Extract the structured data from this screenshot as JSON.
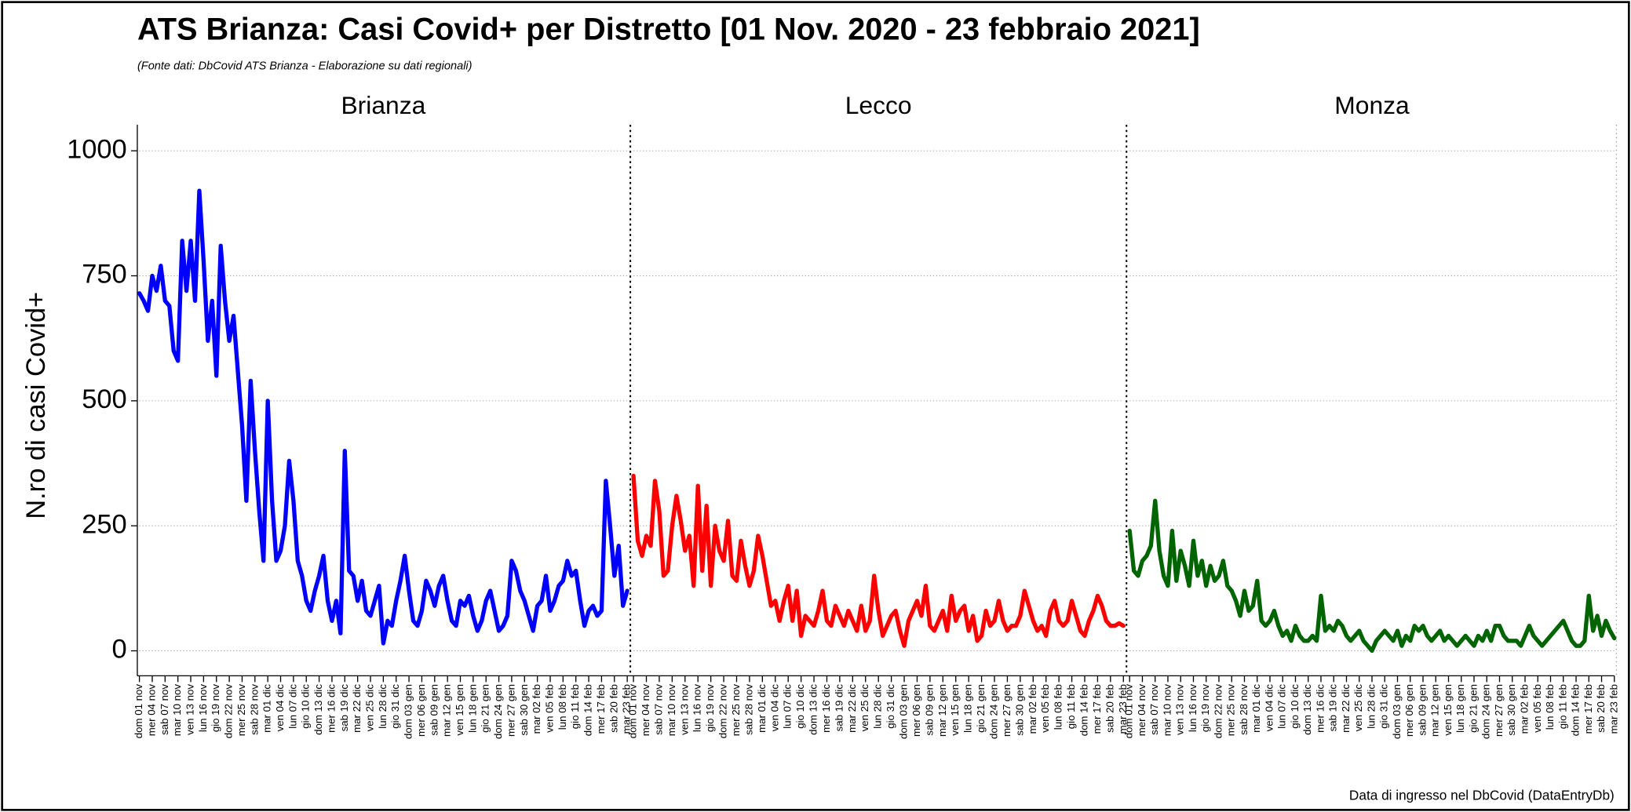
{
  "title": "ATS Brianza: Casi Covid+ per Distretto [01 Nov. 2020 - 23 febbraio 2021]",
  "subtitle": "(Fonte dati: DbCovid ATS Brianza - Elaborazione su dati regionali)",
  "y_label": "N.ro di casi Covid+",
  "caption": "Data di ingresso nel DbCovid (DataEntryDb)",
  "chart_data": [
    {
      "type": "line",
      "title": "Brianza",
      "color": "#0000ff",
      "ylim": [
        -50,
        1050
      ],
      "yticks": [
        0,
        250,
        500,
        750,
        1000
      ],
      "grid": true,
      "categories": [
        "dom 01 nov",
        null,
        null,
        "mer 04 nov",
        null,
        null,
        "sab 07 nov",
        null,
        null,
        "mar 10 nov",
        null,
        null,
        "ven 13 nov",
        null,
        null,
        "lun 16 nov",
        null,
        null,
        "gio 19 nov",
        null,
        null,
        "dom 22 nov",
        null,
        null,
        "mer 25 nov",
        null,
        null,
        "sab 28 nov",
        null,
        null,
        "mar 01 dic",
        null,
        null,
        "ven 04 dic",
        null,
        null,
        "lun 07 dic",
        null,
        null,
        "gio 10 dic",
        null,
        null,
        "dom 13 dic",
        null,
        null,
        "mer 16 dic",
        null,
        null,
        "sab 19 dic",
        null,
        null,
        "mar 22 dic",
        null,
        null,
        "ven 25 dic",
        null,
        null,
        "lun 28 dic",
        null,
        null,
        "gio 31 dic",
        null,
        null,
        "dom 03 gen",
        null,
        null,
        "mer 06 gen",
        null,
        null,
        "sab 09 gen",
        null,
        null,
        "mar 12 gen",
        null,
        null,
        "ven 15 gen",
        null,
        null,
        "lun 18 gen",
        null,
        null,
        "gio 21 gen",
        null,
        null,
        "dom 24 gen",
        null,
        null,
        "mer 27 gen",
        null,
        null,
        "sab 30 gen",
        null,
        null,
        "mar 02 feb",
        null,
        null,
        "ven 05 feb",
        null,
        null,
        "lun 08 feb",
        null,
        null,
        "gio 11 feb",
        null,
        null,
        "dom 14 feb",
        null,
        null,
        "mer 17 feb",
        null,
        null,
        "sab 20 feb",
        null,
        null,
        "mar 23 feb"
      ],
      "values": [
        715,
        700,
        680,
        750,
        720,
        770,
        700,
        690,
        600,
        580,
        820,
        720,
        820,
        700,
        920,
        780,
        620,
        700,
        550,
        810,
        700,
        620,
        670,
        560,
        450,
        300,
        540,
        400,
        280,
        180,
        500,
        300,
        180,
        200,
        250,
        380,
        300,
        180,
        150,
        100,
        80,
        120,
        150,
        190,
        100,
        60,
        100,
        35,
        400,
        160,
        150,
        100,
        140,
        80,
        70,
        100,
        130,
        15,
        60,
        50,
        100,
        140,
        190,
        120,
        60,
        50,
        80,
        140,
        120,
        90,
        130,
        150,
        100,
        60,
        50,
        100,
        90,
        110,
        70,
        40,
        60,
        100,
        120,
        80,
        40,
        50,
        70,
        180,
        160,
        120,
        100,
        70,
        40,
        90,
        100,
        150,
        80,
        100,
        130,
        140,
        180,
        150,
        160,
        100,
        50,
        80,
        90,
        70,
        80,
        340,
        250,
        150,
        210,
        90,
        120
      ]
    },
    {
      "type": "line",
      "title": "Lecco",
      "color": "#ff0000",
      "ylim": [
        -50,
        1050
      ],
      "yticks": [
        0,
        250,
        500,
        750,
        1000
      ],
      "grid": true,
      "categories": [
        "dom 01 nov",
        null,
        null,
        "mer 04 nov",
        null,
        null,
        "sab 07 nov",
        null,
        null,
        "mar 10 nov",
        null,
        null,
        "ven 13 nov",
        null,
        null,
        "lun 16 nov",
        null,
        null,
        "gio 19 nov",
        null,
        null,
        "dom 22 nov",
        null,
        null,
        "mer 25 nov",
        null,
        null,
        "sab 28 nov",
        null,
        null,
        "mar 01 dic",
        null,
        null,
        "ven 04 dic",
        null,
        null,
        "lun 07 dic",
        null,
        null,
        "gio 10 dic",
        null,
        null,
        "dom 13 dic",
        null,
        null,
        "mer 16 dic",
        null,
        null,
        "sab 19 dic",
        null,
        null,
        "mar 22 dic",
        null,
        null,
        "ven 25 dic",
        null,
        null,
        "lun 28 dic",
        null,
        null,
        "gio 31 dic",
        null,
        null,
        "dom 03 gen",
        null,
        null,
        "mer 06 gen",
        null,
        null,
        "sab 09 gen",
        null,
        null,
        "mar 12 gen",
        null,
        null,
        "ven 15 gen",
        null,
        null,
        "lun 18 gen",
        null,
        null,
        "gio 21 gen",
        null,
        null,
        "dom 24 gen",
        null,
        null,
        "mer 27 gen",
        null,
        null,
        "sab 30 gen",
        null,
        null,
        "mar 02 feb",
        null,
        null,
        "ven 05 feb",
        null,
        null,
        "lun 08 feb",
        null,
        null,
        "gio 11 feb",
        null,
        null,
        "dom 14 feb",
        null,
        null,
        "mer 17 feb",
        null,
        null,
        "sab 20 feb",
        null,
        null,
        "mar 23 feb"
      ],
      "values": [
        350,
        220,
        190,
        230,
        210,
        340,
        280,
        150,
        160,
        250,
        310,
        260,
        200,
        230,
        130,
        330,
        160,
        290,
        130,
        250,
        200,
        180,
        260,
        150,
        140,
        220,
        170,
        130,
        160,
        230,
        190,
        140,
        90,
        100,
        60,
        100,
        130,
        60,
        120,
        30,
        70,
        60,
        50,
        80,
        120,
        60,
        50,
        90,
        70,
        50,
        80,
        60,
        40,
        90,
        40,
        60,
        150,
        80,
        30,
        50,
        70,
        80,
        40,
        10,
        60,
        80,
        100,
        70,
        130,
        50,
        40,
        60,
        80,
        40,
        110,
        60,
        80,
        90,
        40,
        70,
        20,
        30,
        80,
        50,
        60,
        100,
        60,
        40,
        50,
        50,
        70,
        120,
        90,
        60,
        40,
        50,
        30,
        80,
        100,
        60,
        50,
        60,
        100,
        70,
        40,
        30,
        60,
        80,
        110,
        90,
        60,
        50,
        50,
        55,
        50
      ]
    },
    {
      "type": "line",
      "title": "Monza",
      "color": "#006400",
      "ylim": [
        -50,
        1050
      ],
      "yticks": [
        0,
        250,
        500,
        750,
        1000
      ],
      "grid": true,
      "categories": [
        "dom 01 nov",
        null,
        null,
        "mer 04 nov",
        null,
        null,
        "sab 07 nov",
        null,
        null,
        "mar 10 nov",
        null,
        null,
        "ven 13 nov",
        null,
        null,
        "lun 16 nov",
        null,
        null,
        "gio 19 nov",
        null,
        null,
        "dom 22 nov",
        null,
        null,
        "mer 25 nov",
        null,
        null,
        "sab 28 nov",
        null,
        null,
        "mar 01 dic",
        null,
        null,
        "ven 04 dic",
        null,
        null,
        "lun 07 dic",
        null,
        null,
        "gio 10 dic",
        null,
        null,
        "dom 13 dic",
        null,
        null,
        "mer 16 dic",
        null,
        null,
        "sab 19 dic",
        null,
        null,
        "mar 22 dic",
        null,
        null,
        "ven 25 dic",
        null,
        null,
        "lun 28 dic",
        null,
        null,
        "gio 31 dic",
        null,
        null,
        "dom 03 gen",
        null,
        null,
        "mer 06 gen",
        null,
        null,
        "sab 09 gen",
        null,
        null,
        "mar 12 gen",
        null,
        null,
        "ven 15 gen",
        null,
        null,
        "lun 18 gen",
        null,
        null,
        "gio 21 gen",
        null,
        null,
        "dom 24 gen",
        null,
        null,
        "mer 27 gen",
        null,
        null,
        "sab 30 gen",
        null,
        null,
        "mar 02 feb",
        null,
        null,
        "ven 05 feb",
        null,
        null,
        "lun 08 feb",
        null,
        null,
        "gio 11 feb",
        null,
        null,
        "dom 14 feb",
        null,
        null,
        "mer 17 feb",
        null,
        null,
        "sab 20 feb",
        null,
        null,
        "mar 23 feb"
      ],
      "values": [
        240,
        160,
        150,
        180,
        190,
        210,
        300,
        200,
        150,
        130,
        240,
        140,
        200,
        170,
        130,
        220,
        150,
        180,
        130,
        170,
        140,
        150,
        180,
        130,
        120,
        100,
        70,
        120,
        80,
        90,
        140,
        60,
        50,
        60,
        80,
        50,
        30,
        40,
        20,
        50,
        30,
        20,
        20,
        30,
        20,
        110,
        40,
        50,
        40,
        60,
        50,
        30,
        20,
        30,
        40,
        20,
        10,
        0,
        20,
        30,
        40,
        30,
        20,
        40,
        10,
        30,
        20,
        50,
        40,
        50,
        30,
        20,
        30,
        40,
        20,
        30,
        20,
        10,
        20,
        30,
        20,
        10,
        30,
        20,
        40,
        20,
        50,
        50,
        30,
        20,
        20,
        20,
        10,
        30,
        50,
        30,
        20,
        10,
        20,
        30,
        40,
        50,
        60,
        40,
        20,
        10,
        10,
        20,
        110,
        40,
        70,
        30,
        60,
        40,
        25
      ]
    }
  ]
}
